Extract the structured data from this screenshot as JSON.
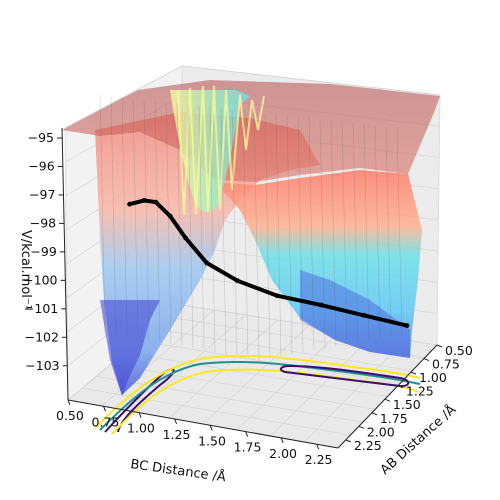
{
  "chart_data": {
    "type": "surface3d",
    "title": "",
    "xlabel": "BC Distance /Å",
    "ylabel": "AB Distance /Å",
    "zlabel": "V/kcal.mol⁻¹",
    "x_ticks": [
      "0.50",
      "0.75",
      "1.00",
      "1.25",
      "1.50",
      "1.75",
      "2.00",
      "2.25"
    ],
    "y_ticks": [
      "0.50",
      "0.75",
      "1.00",
      "1.25",
      "1.50",
      "1.75",
      "2.00",
      "2.25"
    ],
    "z_ticks": [
      "−95",
      "−96",
      "−97",
      "−98",
      "−99",
      "−100",
      "−101",
      "−102",
      "−103"
    ],
    "xlim": [
      0.5,
      2.4
    ],
    "ylim": [
      0.5,
      2.4
    ],
    "zlim": [
      -103.5,
      -95
    ],
    "colormap": "jet",
    "surface_alpha": 0.5,
    "contour_colors": [
      "#3b0f70",
      "#21908c",
      "#fde725"
    ],
    "trajectory": {
      "color": "#000000",
      "points": [
        {
          "bc": 0.74,
          "ab": 1.9,
          "v": -97.5
        },
        {
          "bc": 0.76,
          "ab": 1.7,
          "v": -97.7
        },
        {
          "bc": 0.78,
          "ab": 1.55,
          "v": -98.0
        },
        {
          "bc": 0.82,
          "ab": 1.4,
          "v": -98.7
        },
        {
          "bc": 0.88,
          "ab": 1.28,
          "v": -99.6
        },
        {
          "bc": 0.98,
          "ab": 1.15,
          "v": -100.6
        },
        {
          "bc": 1.15,
          "ab": 1.02,
          "v": -101.3
        },
        {
          "bc": 1.4,
          "ab": 0.92,
          "v": -101.8
        },
        {
          "bc": 1.7,
          "ab": 0.86,
          "v": -102.0
        },
        {
          "bc": 2.0,
          "ab": 0.82,
          "v": -102.2
        },
        {
          "bc": 2.3,
          "ab": 0.78,
          "v": -102.4
        }
      ]
    }
  }
}
